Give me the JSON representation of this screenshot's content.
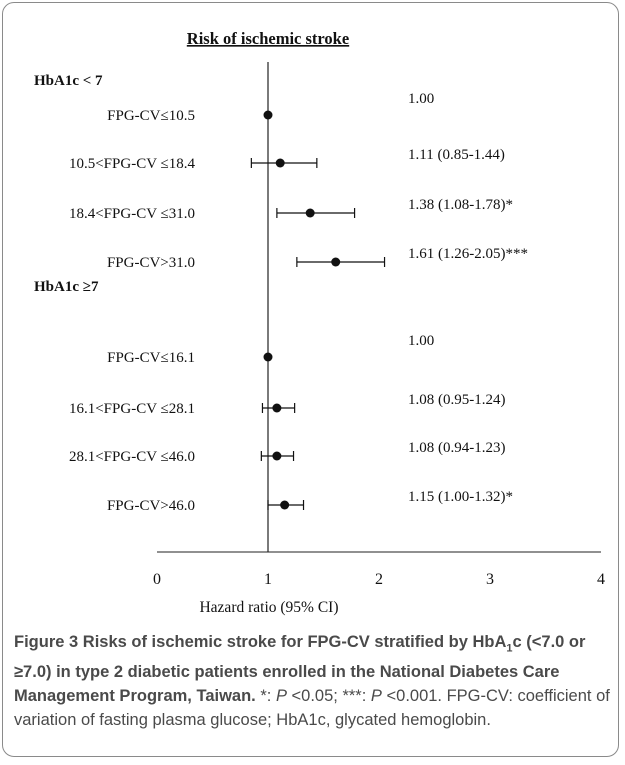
{
  "chart_data": {
    "type": "forest",
    "title": "Risk of ischemic stroke",
    "xlabel": "Hazard ratio (95% CI)",
    "xlim": [
      0,
      4
    ],
    "xticks": [
      "0",
      "1",
      "2",
      "3",
      "4"
    ],
    "reference_line": 1,
    "groups": [
      {
        "label": "HbA1c < 7",
        "rows": [
          {
            "label": "FPG-CV≤10.5",
            "hr": 1.0,
            "lo": null,
            "hi": null,
            "text": "1.00"
          },
          {
            "label": "10.5<FPG-CV ≤18.4",
            "hr": 1.11,
            "lo": 0.85,
            "hi": 1.44,
            "text": "1.11 (0.85-1.44)"
          },
          {
            "label": "18.4<FPG-CV ≤31.0",
            "hr": 1.38,
            "lo": 1.08,
            "hi": 1.78,
            "text": "1.38 (1.08-1.78)*"
          },
          {
            "label": "FPG-CV>31.0",
            "hr": 1.61,
            "lo": 1.26,
            "hi": 2.05,
            "text": "1.61 (1.26-2.05)***"
          }
        ]
      },
      {
        "label": "HbA1c ≥7",
        "rows": [
          {
            "label": "FPG-CV≤16.1",
            "hr": 1.0,
            "lo": null,
            "hi": null,
            "text": "1.00"
          },
          {
            "label": "16.1<FPG-CV ≤28.1",
            "hr": 1.08,
            "lo": 0.95,
            "hi": 1.24,
            "text": "1.08 (0.95-1.24)"
          },
          {
            "label": "28.1<FPG-CV ≤46.0",
            "hr": 1.08,
            "lo": 0.94,
            "hi": 1.23,
            "text": "1.08 (0.94-1.23)"
          },
          {
            "label": "FPG-CV>46.0",
            "hr": 1.15,
            "lo": 1.0,
            "hi": 1.32,
            "text": "1.15 (1.00-1.32)*"
          }
        ]
      }
    ]
  },
  "caption": {
    "label": "Figure 3",
    "title_part1": "Risks of ischemic stroke for FPG-CV stratified by HbA",
    "title_sub": "1",
    "title_part2": "c (<7.0 or ≥7.0) in type 2 diabetic patients enrolled in the National Diabetes Care Management Program, Taiwan.",
    "note1_prefix": "*: ",
    "note1_p": "P",
    "note1_suffix": " <0.05;",
    "note2_prefix": "***: ",
    "note2_p": "P",
    "note2_suffix": " <0.001. FPG-CV: coefficient of variation of fasting plasma glucose; HbA1c, glycated hemoglobin."
  }
}
